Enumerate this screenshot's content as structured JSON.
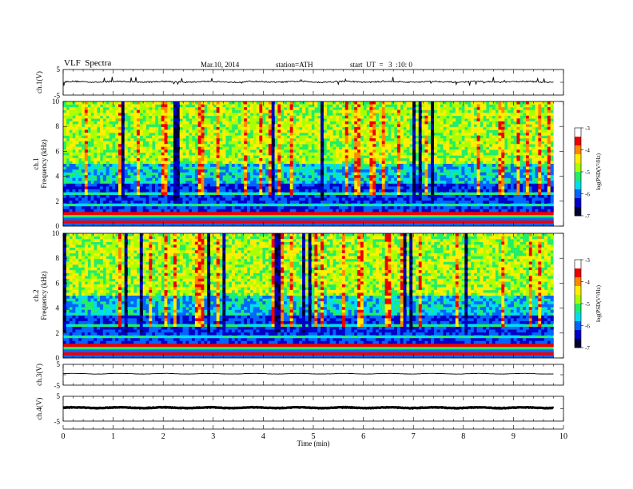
{
  "header": {
    "title": "VLF  Spectra",
    "date": "Mar.10, 2014",
    "station": "station=ATH",
    "start": "start  UT  =   3  :10: 0"
  },
  "chart_data": [
    {
      "type": "line",
      "id": "ch1-waveform",
      "ylabel": "ch.1(V)",
      "ylim": [
        -5,
        5
      ],
      "yticks": [
        "5",
        "-5"
      ],
      "xlim": [
        0,
        10
      ],
      "level": 0.2,
      "noise": 0.25,
      "spikes": true,
      "color": "#000000"
    },
    {
      "type": "heatmap",
      "id": "ch1-spectrogram",
      "ylabel": "ch.1\nFrequency  (kHz)",
      "ylim": [
        0,
        10
      ],
      "yticks": [
        "0",
        "2",
        "4",
        "6",
        "8",
        "10"
      ],
      "xlim": [
        0,
        10
      ],
      "data_end": 9.8,
      "colorbar": {
        "label": "log(PSD(V²/Hz)",
        "range": [
          -7,
          -3
        ],
        "ticks": [
          "-3",
          "-4",
          "-5",
          "-6",
          "-7"
        ]
      }
    },
    {
      "type": "heatmap",
      "id": "ch2-spectrogram",
      "ylabel": "ch.2\nFrequency  (kHz)",
      "ylim": [
        0,
        10
      ],
      "yticks": [
        "0",
        "2",
        "4",
        "6",
        "8",
        "10"
      ],
      "xlim": [
        0,
        10
      ],
      "data_end": 9.8,
      "colorbar": {
        "label": "log(PSD(V²/Hz)",
        "range": [
          -7,
          -3
        ],
        "ticks": [
          "-3",
          "-4",
          "-5",
          "-6",
          "-7"
        ]
      }
    },
    {
      "type": "line",
      "id": "ch3-waveform",
      "ylabel": "ch.3(V)",
      "ylim": [
        -5,
        5
      ],
      "yticks": [
        "5",
        "-5"
      ],
      "xlim": [
        0,
        10
      ],
      "level": 0.5,
      "noise": 0.06,
      "spikes": false,
      "color": "#000000"
    },
    {
      "type": "line",
      "id": "ch4-waveform",
      "ylabel": "ch.4(V)",
      "ylim": [
        -5,
        5
      ],
      "yticks": [
        "5",
        "-5"
      ],
      "xlim": [
        0,
        10
      ],
      "level": 0.4,
      "noise": 0.12,
      "spikes": false,
      "thick": true,
      "color": "#000000"
    }
  ],
  "xaxis": {
    "label": "Time  (min)",
    "ticks": [
      "0",
      "1",
      "2",
      "3",
      "4",
      "5",
      "6",
      "7",
      "8",
      "9",
      "10"
    ]
  },
  "colors": {
    "background": "#ffffff",
    "axis": "#000000",
    "colormap": [
      "#000033",
      "#0000c8",
      "#0066ff",
      "#00ddee",
      "#22ee66",
      "#aaff00",
      "#ffee00",
      "#ff8800",
      "#ee0000",
      "#ffffff"
    ]
  }
}
